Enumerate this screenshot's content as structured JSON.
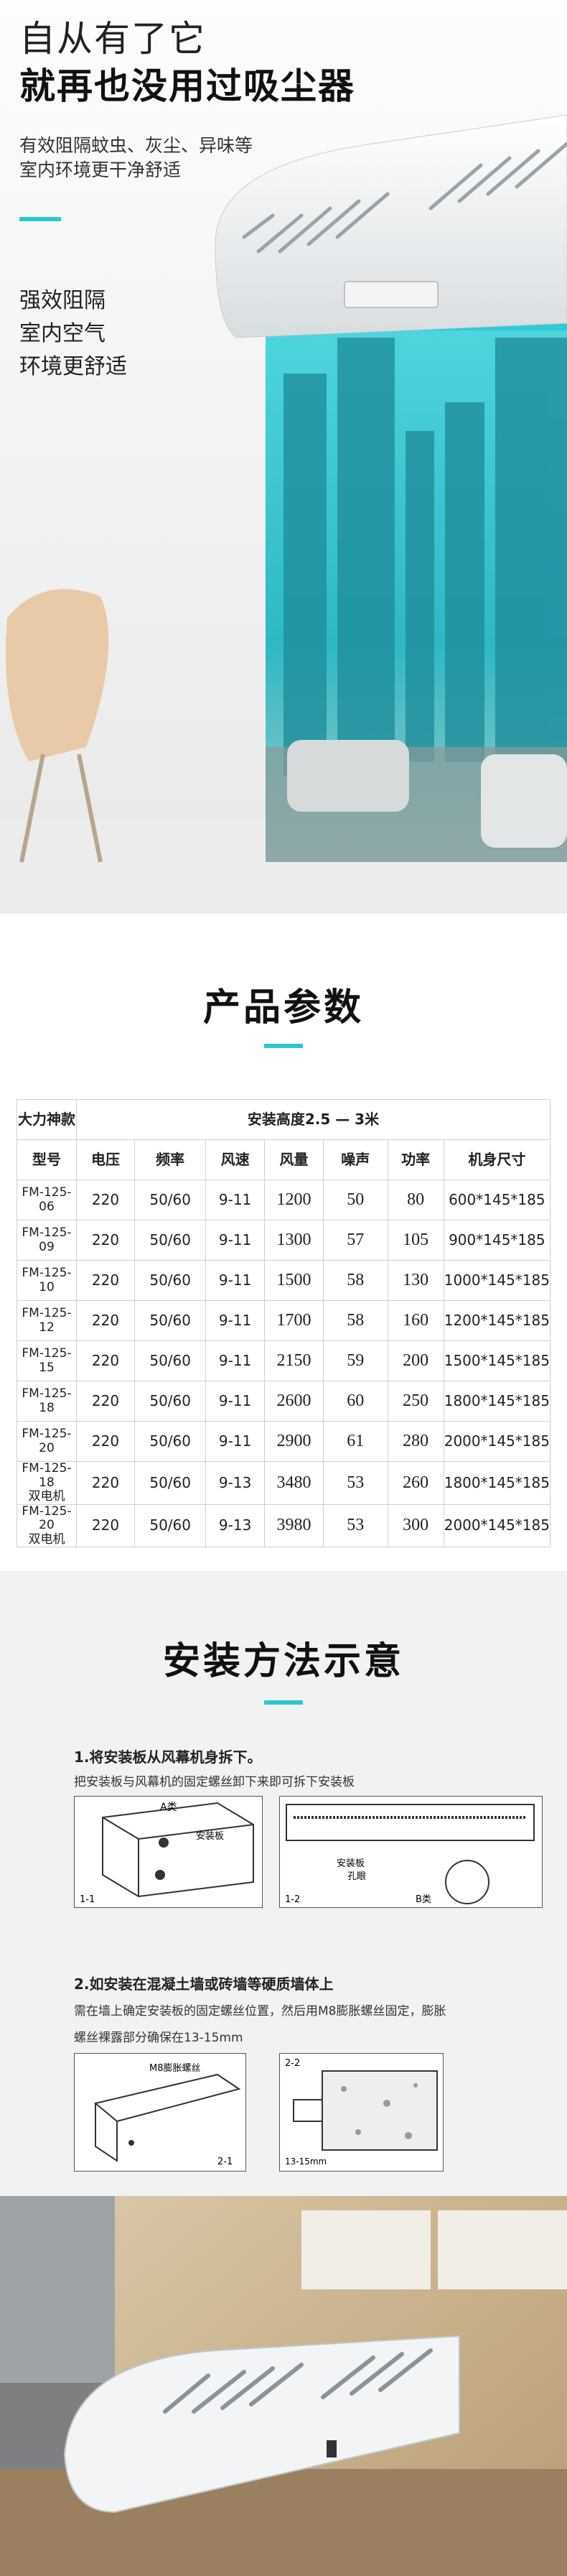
{
  "hero": {
    "title_line1": "自从有了它",
    "title_line2": "就再也没用过吸尘器",
    "subtitle_lines": [
      "有效阻隔蚊虫、灰尘、异味等",
      "室内环境更干净舒适"
    ],
    "features": [
      "强效阻隔",
      "室内空气",
      "环境更舒适"
    ]
  },
  "params": {
    "title": "产品参数",
    "table": {
      "top_row": [
        "大力神款",
        "安装高度2.5 — 3米"
      ],
      "header": [
        "型号",
        "电压",
        "频率",
        "风速",
        "风量",
        "噪声",
        "功率",
        "机身尺寸"
      ],
      "rows": [
        [
          "FM-125-06",
          "220",
          "50/60",
          "9-11",
          "1200",
          "50",
          "80",
          "600*145*185"
        ],
        [
          "FM-125-09",
          "220",
          "50/60",
          "9-11",
          "1300",
          "57",
          "105",
          "900*145*185"
        ],
        [
          "FM-125-10",
          "220",
          "50/60",
          "9-11",
          "1500",
          "58",
          "130",
          "1000*145*185"
        ],
        [
          "FM-125-12",
          "220",
          "50/60",
          "9-11",
          "1700",
          "58",
          "160",
          "1200*145*185"
        ],
        [
          "FM-125-15",
          "220",
          "50/60",
          "9-11",
          "2150",
          "59",
          "200",
          "1500*145*185"
        ],
        [
          "FM-125-18",
          "220",
          "50/60",
          "9-11",
          "2600",
          "60",
          "250",
          "1800*145*185"
        ],
        [
          "FM-125-20",
          "220",
          "50/60",
          "9-11",
          "2900",
          "61",
          "280",
          "2000*145*185"
        ],
        [
          "FM-125-18\n双电机",
          "220",
          "50/60",
          "9-13",
          "3480",
          "53",
          "260",
          "1800*145*185"
        ],
        [
          "FM-125-20\n双电机",
          "220",
          "50/60",
          "9-13",
          "3980",
          "53",
          "300",
          "2000*145*185"
        ]
      ]
    }
  },
  "install": {
    "title": "安装方法示意",
    "step1": {
      "title": "1.将安装板从风幕机身拆下。",
      "desc": "把安装板与风幕机的固定螺丝卸下来即可拆下安装板",
      "fig1": {
        "label_a": "A类",
        "label_plate": "安装板",
        "number": "1-1"
      },
      "fig2": {
        "label_plate": "安装板",
        "label_hole": "孔眼",
        "label_b": "B类",
        "number": "1-2"
      }
    },
    "step2": {
      "title": "2.如安装在混凝土墙或砖墙等硬质墙体上",
      "desc_lines": [
        "需在墙上确定安装板的固定螺丝位置，然后用M8膨胀螺丝固定，膨胀",
        "螺丝裸露部分确保在13-15mm"
      ],
      "fig1": {
        "label_bolt": "M8膨胀螺丝",
        "number": "2-1"
      },
      "fig2": {
        "number": "2-2",
        "label_gap": "13-15mm"
      }
    }
  }
}
